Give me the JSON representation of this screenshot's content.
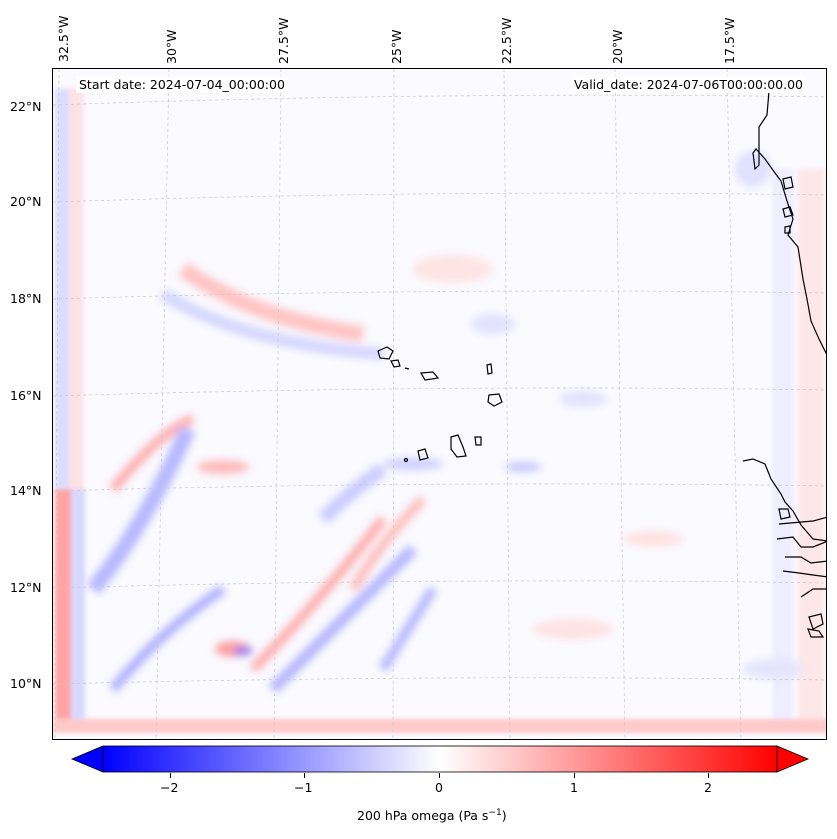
{
  "header": {
    "start_date": "Start date: 2024-07-04_00:00:00",
    "valid_date": "Valid_date: 2024-07-06T00:00:00.00"
  },
  "axes": {
    "longitude_labels": [
      "32.5°W",
      "30°W",
      "27.5°W",
      "25°W",
      "22.5°W",
      "20°W",
      "17.5°W"
    ],
    "latitude_labels": [
      "22°N",
      "20°N",
      "18°N",
      "16°N",
      "14°N",
      "12°N",
      "10°N"
    ],
    "lon_range": [
      -33,
      -15.5
    ],
    "lat_range": [
      8.9,
      22.8
    ]
  },
  "colorbar": {
    "label": "200 hPa omega (Pa s",
    "label_exp": "−1",
    "label_close": ")",
    "tick_labels": [
      "−2",
      "−1",
      "0",
      "1",
      "2"
    ],
    "ticks": [
      -2,
      -1,
      0,
      1,
      2
    ],
    "range": [
      -2.5,
      2.5
    ],
    "colormap": "bwr",
    "extend": "both",
    "low_color": "#0000ff",
    "mid_color": "#ffffff",
    "high_color": "#ff0000"
  },
  "map": {
    "projection": "Lambert conformal",
    "gridlines": true,
    "gridline_color": "#bbbbbb",
    "coastline_color": "#000000",
    "regions": [
      "Cape Verde islands",
      "West African coast"
    ]
  }
}
